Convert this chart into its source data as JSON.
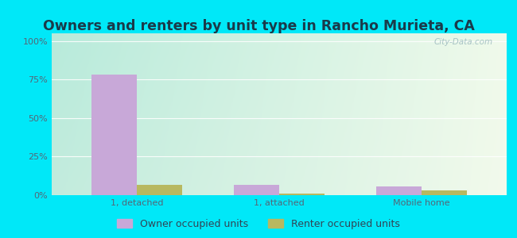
{
  "title": "Owners and renters by unit type in Rancho Murieta, CA",
  "categories": [
    "1, detached",
    "1, attached",
    "Mobile home"
  ],
  "owner_values": [
    78.0,
    6.5,
    5.5
  ],
  "renter_values": [
    6.5,
    1.2,
    3.0
  ],
  "owner_color": "#c8a8d8",
  "renter_color": "#b8b860",
  "yticks": [
    0,
    25,
    50,
    75,
    100
  ],
  "ytick_labels": [
    "0%",
    "25%",
    "50%",
    "75%",
    "100%"
  ],
  "ylim": [
    0,
    105
  ],
  "bg_outer": "#00e8f8",
  "watermark": "City-Data.com",
  "legend_owner": "Owner occupied units",
  "legend_renter": "Renter occupied units",
  "bar_width": 0.32,
  "title_fontsize": 12.5,
  "tick_fontsize": 8,
  "legend_fontsize": 9,
  "grid_color": "#d0e8d0",
  "bg_left": "#b0e8d0",
  "bg_right": "#e8f8e8"
}
